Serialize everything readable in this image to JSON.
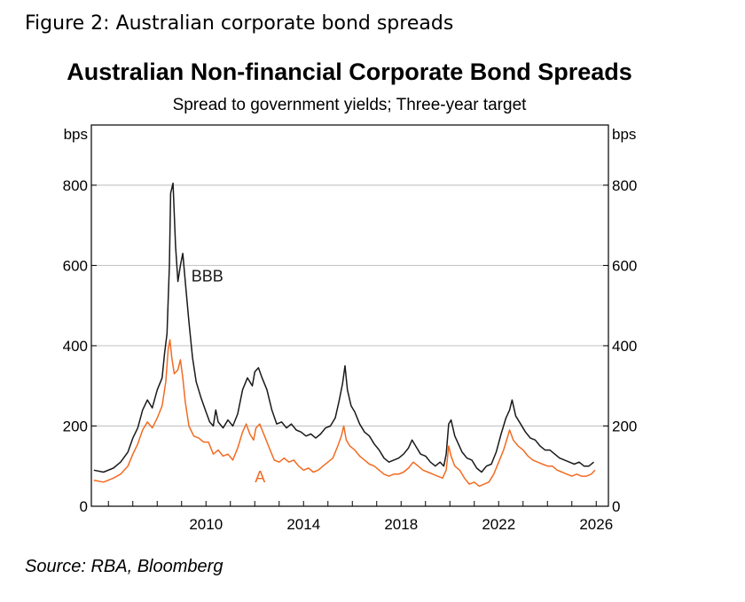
{
  "figure_caption": "Figure 2: Australian corporate bond spreads",
  "source_note": "Source: RBA, Bloomberg",
  "colors": {
    "BBB": "#1a1a1a",
    "A": "#f26b21",
    "grid": "#c8c8c8",
    "axis": "#000000"
  },
  "chart_data": {
    "type": "line",
    "title": "Australian Non-financial Corporate Bond Spreads",
    "subtitle": "Spread to government yields; Three-year target",
    "ylabel_left": "bps",
    "ylabel_right": "bps",
    "ylim": [
      0,
      950
    ],
    "yticks": [
      0,
      200,
      400,
      600,
      800
    ],
    "xlim": [
      2005.3,
      2026.5
    ],
    "xticks": [
      2010,
      2014,
      2018,
      2022,
      2026
    ],
    "grid": "horizontal",
    "series": [
      {
        "name": "BBB",
        "color": "#1a1a1a",
        "points": [
          [
            2005.4,
            90
          ],
          [
            2005.8,
            85
          ],
          [
            2006.2,
            95
          ],
          [
            2006.5,
            110
          ],
          [
            2006.8,
            135
          ],
          [
            2007.0,
            170
          ],
          [
            2007.2,
            195
          ],
          [
            2007.4,
            240
          ],
          [
            2007.6,
            265
          ],
          [
            2007.8,
            245
          ],
          [
            2008.0,
            290
          ],
          [
            2008.2,
            320
          ],
          [
            2008.3,
            380
          ],
          [
            2008.4,
            430
          ],
          [
            2008.5,
            600
          ],
          [
            2008.55,
            780
          ],
          [
            2008.65,
            805
          ],
          [
            2008.75,
            650
          ],
          [
            2008.85,
            560
          ],
          [
            2008.95,
            600
          ],
          [
            2009.05,
            630
          ],
          [
            2009.15,
            560
          ],
          [
            2009.3,
            460
          ],
          [
            2009.45,
            370
          ],
          [
            2009.6,
            310
          ],
          [
            2009.8,
            270
          ],
          [
            2010.0,
            235
          ],
          [
            2010.15,
            210
          ],
          [
            2010.3,
            200
          ],
          [
            2010.4,
            240
          ],
          [
            2010.5,
            210
          ],
          [
            2010.7,
            195
          ],
          [
            2010.9,
            215
          ],
          [
            2011.1,
            200
          ],
          [
            2011.3,
            230
          ],
          [
            2011.5,
            290
          ],
          [
            2011.7,
            320
          ],
          [
            2011.9,
            300
          ],
          [
            2012.0,
            335
          ],
          [
            2012.15,
            345
          ],
          [
            2012.3,
            320
          ],
          [
            2012.5,
            290
          ],
          [
            2012.7,
            240
          ],
          [
            2012.9,
            205
          ],
          [
            2013.1,
            210
          ],
          [
            2013.3,
            195
          ],
          [
            2013.5,
            205
          ],
          [
            2013.7,
            190
          ],
          [
            2013.9,
            185
          ],
          [
            2014.1,
            175
          ],
          [
            2014.3,
            180
          ],
          [
            2014.5,
            170
          ],
          [
            2014.7,
            180
          ],
          [
            2014.9,
            195
          ],
          [
            2015.1,
            200
          ],
          [
            2015.3,
            220
          ],
          [
            2015.45,
            260
          ],
          [
            2015.6,
            305
          ],
          [
            2015.7,
            350
          ],
          [
            2015.8,
            290
          ],
          [
            2015.95,
            250
          ],
          [
            2016.1,
            235
          ],
          [
            2016.3,
            205
          ],
          [
            2016.5,
            185
          ],
          [
            2016.7,
            175
          ],
          [
            2016.9,
            155
          ],
          [
            2017.1,
            140
          ],
          [
            2017.3,
            120
          ],
          [
            2017.5,
            110
          ],
          [
            2017.7,
            115
          ],
          [
            2017.9,
            120
          ],
          [
            2018.1,
            130
          ],
          [
            2018.3,
            145
          ],
          [
            2018.45,
            165
          ],
          [
            2018.6,
            150
          ],
          [
            2018.8,
            130
          ],
          [
            2019.0,
            125
          ],
          [
            2019.2,
            110
          ],
          [
            2019.4,
            100
          ],
          [
            2019.6,
            110
          ],
          [
            2019.75,
            100
          ],
          [
            2019.85,
            130
          ],
          [
            2019.95,
            205
          ],
          [
            2020.05,
            215
          ],
          [
            2020.2,
            175
          ],
          [
            2020.35,
            155
          ],
          [
            2020.5,
            135
          ],
          [
            2020.7,
            120
          ],
          [
            2020.9,
            115
          ],
          [
            2021.1,
            95
          ],
          [
            2021.3,
            85
          ],
          [
            2021.5,
            100
          ],
          [
            2021.7,
            105
          ],
          [
            2021.9,
            135
          ],
          [
            2022.1,
            180
          ],
          [
            2022.3,
            220
          ],
          [
            2022.45,
            240
          ],
          [
            2022.55,
            265
          ],
          [
            2022.7,
            225
          ],
          [
            2022.9,
            205
          ],
          [
            2023.1,
            185
          ],
          [
            2023.3,
            170
          ],
          [
            2023.5,
            165
          ],
          [
            2023.7,
            150
          ],
          [
            2023.9,
            140
          ],
          [
            2024.1,
            140
          ],
          [
            2024.3,
            130
          ],
          [
            2024.5,
            120
          ],
          [
            2024.7,
            115
          ],
          [
            2024.9,
            110
          ],
          [
            2025.1,
            105
          ],
          [
            2025.3,
            110
          ],
          [
            2025.5,
            100
          ],
          [
            2025.7,
            100
          ],
          [
            2025.9,
            110
          ]
        ]
      },
      {
        "name": "A",
        "color": "#f26b21",
        "points": [
          [
            2005.4,
            65
          ],
          [
            2005.8,
            60
          ],
          [
            2006.2,
            70
          ],
          [
            2006.5,
            80
          ],
          [
            2006.8,
            100
          ],
          [
            2007.0,
            130
          ],
          [
            2007.2,
            155
          ],
          [
            2007.4,
            190
          ],
          [
            2007.6,
            210
          ],
          [
            2007.8,
            195
          ],
          [
            2008.0,
            220
          ],
          [
            2008.2,
            250
          ],
          [
            2008.35,
            310
          ],
          [
            2008.45,
            390
          ],
          [
            2008.52,
            415
          ],
          [
            2008.6,
            370
          ],
          [
            2008.7,
            330
          ],
          [
            2008.85,
            340
          ],
          [
            2008.95,
            365
          ],
          [
            2009.05,
            320
          ],
          [
            2009.15,
            260
          ],
          [
            2009.3,
            200
          ],
          [
            2009.5,
            175
          ],
          [
            2009.7,
            170
          ],
          [
            2009.9,
            160
          ],
          [
            2010.1,
            160
          ],
          [
            2010.3,
            130
          ],
          [
            2010.5,
            140
          ],
          [
            2010.7,
            125
          ],
          [
            2010.9,
            130
          ],
          [
            2011.1,
            115
          ],
          [
            2011.3,
            145
          ],
          [
            2011.5,
            185
          ],
          [
            2011.65,
            205
          ],
          [
            2011.8,
            180
          ],
          [
            2011.95,
            165
          ],
          [
            2012.05,
            195
          ],
          [
            2012.2,
            205
          ],
          [
            2012.4,
            175
          ],
          [
            2012.6,
            145
          ],
          [
            2012.8,
            115
          ],
          [
            2013.0,
            110
          ],
          [
            2013.2,
            120
          ],
          [
            2013.4,
            110
          ],
          [
            2013.6,
            115
          ],
          [
            2013.8,
            100
          ],
          [
            2014.0,
            90
          ],
          [
            2014.2,
            95
          ],
          [
            2014.4,
            85
          ],
          [
            2014.6,
            90
          ],
          [
            2014.8,
            100
          ],
          [
            2015.0,
            110
          ],
          [
            2015.2,
            120
          ],
          [
            2015.4,
            150
          ],
          [
            2015.55,
            175
          ],
          [
            2015.65,
            200
          ],
          [
            2015.75,
            165
          ],
          [
            2015.9,
            150
          ],
          [
            2016.1,
            140
          ],
          [
            2016.3,
            125
          ],
          [
            2016.5,
            115
          ],
          [
            2016.7,
            105
          ],
          [
            2016.9,
            100
          ],
          [
            2017.1,
            90
          ],
          [
            2017.3,
            80
          ],
          [
            2017.5,
            75
          ],
          [
            2017.7,
            80
          ],
          [
            2017.9,
            80
          ],
          [
            2018.1,
            85
          ],
          [
            2018.3,
            95
          ],
          [
            2018.5,
            110
          ],
          [
            2018.7,
            100
          ],
          [
            2018.9,
            90
          ],
          [
            2019.1,
            85
          ],
          [
            2019.3,
            80
          ],
          [
            2019.5,
            75
          ],
          [
            2019.7,
            70
          ],
          [
            2019.85,
            90
          ],
          [
            2019.95,
            150
          ],
          [
            2020.05,
            125
          ],
          [
            2020.2,
            100
          ],
          [
            2020.4,
            90
          ],
          [
            2020.6,
            70
          ],
          [
            2020.8,
            55
          ],
          [
            2021.0,
            60
          ],
          [
            2021.2,
            50
          ],
          [
            2021.4,
            55
          ],
          [
            2021.6,
            60
          ],
          [
            2021.8,
            80
          ],
          [
            2022.0,
            110
          ],
          [
            2022.2,
            140
          ],
          [
            2022.35,
            170
          ],
          [
            2022.45,
            190
          ],
          [
            2022.6,
            165
          ],
          [
            2022.8,
            150
          ],
          [
            2023.0,
            140
          ],
          [
            2023.2,
            125
          ],
          [
            2023.4,
            115
          ],
          [
            2023.6,
            110
          ],
          [
            2023.8,
            105
          ],
          [
            2024.0,
            100
          ],
          [
            2024.2,
            100
          ],
          [
            2024.4,
            90
          ],
          [
            2024.6,
            85
          ],
          [
            2024.8,
            80
          ],
          [
            2025.0,
            75
          ],
          [
            2025.2,
            80
          ],
          [
            2025.4,
            75
          ],
          [
            2025.6,
            75
          ],
          [
            2025.8,
            80
          ],
          [
            2025.95,
            90
          ]
        ]
      }
    ],
    "annotations": [
      {
        "text": "BBB",
        "series": "BBB",
        "x": 2009.4,
        "y": 560
      },
      {
        "text": "A",
        "series": "A",
        "x": 2012.0,
        "y": 60
      }
    ]
  }
}
